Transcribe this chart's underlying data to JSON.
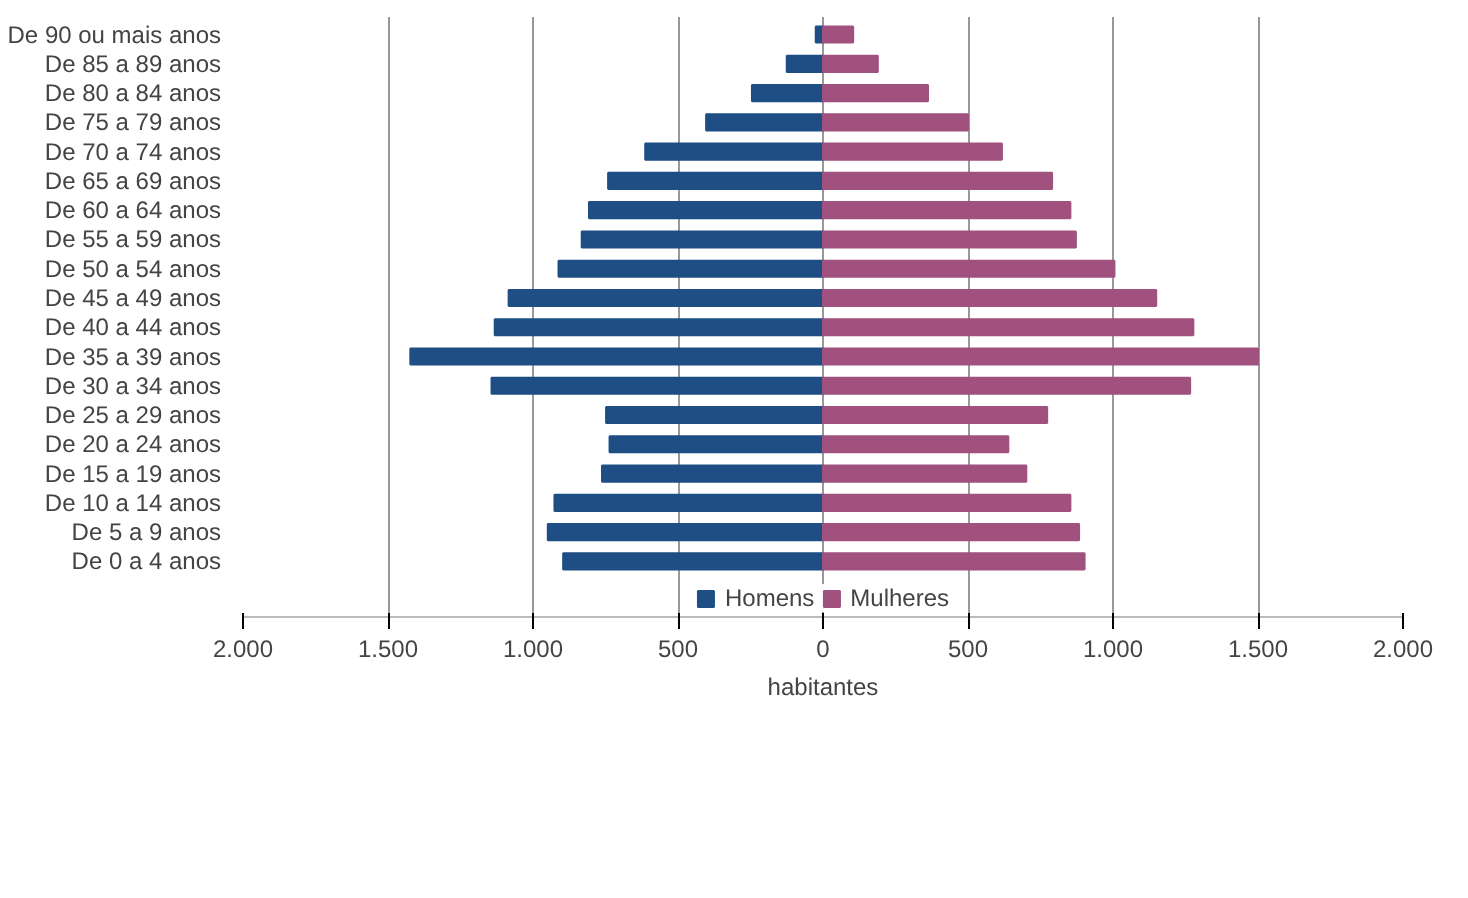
{
  "chart_data": {
    "type": "bar",
    "orientation": "horizontal",
    "xlabel": "habitantes",
    "categories": [
      "De 90 ou mais anos",
      "De 85 a 89 anos",
      "De 80 a 84 anos",
      "De 75 a 79 anos",
      "De 70 a 74 anos",
      "De 65 a 69 anos",
      "De 60 a 64 anos",
      "De 55 a 59 anos",
      "De 50 a 54 anos",
      "De 45 a 49 anos",
      "De 40 a 44 anos",
      "De 35 a 39 anos",
      "De 30 a 34 anos",
      "De 25 a 29 anos",
      "De 20 a 24 anos",
      "De 15 a 19 anos",
      "De 10 a 14 anos",
      "De 5 a 9 anos",
      "De 0 a 4 anos"
    ],
    "series": [
      {
        "name": "Homens",
        "color": "#1f4e85",
        "values": [
          -25,
          -125,
          -245,
          -403,
          -613,
          -741,
          -807,
          -832,
          -912,
          -1084,
          -1132,
          -1423,
          -1143,
          -748,
          -736,
          -762,
          -926,
          -949,
          -896
        ]
      },
      {
        "name": "Mulheres",
        "color": "#a0517e",
        "values": [
          104,
          189,
          362,
          500,
          617,
          790,
          853,
          872,
          1005,
          1149,
          1277,
          1500,
          1266,
          773,
          639,
          701,
          853,
          883,
          902
        ]
      }
    ],
    "xlim": [
      -2000,
      2000
    ],
    "xticks": [
      {
        "value": -2000,
        "label": "2.000"
      },
      {
        "value": -1500,
        "label": "1.500"
      },
      {
        "value": -1000,
        "label": "1.000"
      },
      {
        "value": -500,
        "label": "500"
      },
      0,
      500,
      {
        "value": 1000,
        "label": "1.000"
      },
      {
        "value": 1500,
        "label": "1.500"
      },
      {
        "value": 2000,
        "label": "2.000"
      }
    ],
    "grid": "x",
    "legend": "bottom",
    "stacked": true
  }
}
